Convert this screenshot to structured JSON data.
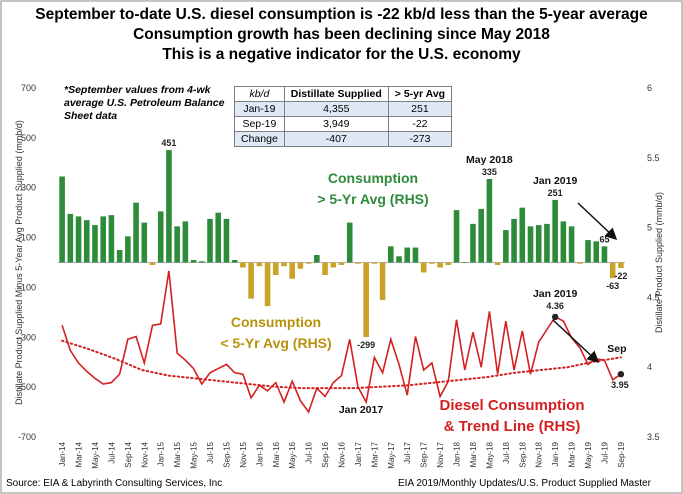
{
  "titles": [
    "September to-date U.S. diesel consumption is -22 kb/d less than the 5-year average",
    "Consumption growth has been declining since May 2018",
    "This is a negative indicator for the U.S. economy"
  ],
  "note": "*September values from 4-wk average U.S. Petroleum Balance Sheet data",
  "table": {
    "headers": [
      "kb/d",
      "Distillate Supplied",
      "> 5-yr Avg"
    ],
    "rows": [
      [
        "Jan-19",
        "4,355",
        "251"
      ],
      [
        "Sep-19",
        "3,949",
        "-22"
      ],
      [
        "Change",
        "-407",
        "-273"
      ]
    ]
  },
  "footer": {
    "source": "Source: EIA & Labyrinth Consulting Services, Inc",
    "credit": "EIA 2019/Monthly Updates/U.S. Product Supplied Master"
  },
  "colors": {
    "positive_bar": "#2e8b3a",
    "negative_bar": "#c9a227",
    "line": "#d42020",
    "trend": "#d42020",
    "green_text": "#2e8b3a",
    "gold_text": "#b8920c",
    "red_text": "#d42020"
  },
  "chart_data": {
    "type": "bar+line",
    "ylabel_left": "Distillate Product Supplied Minus 5-Year Avg Product Supplied (mmb/d)",
    "ylabel_right": "Distillate Product Supplied (mmb/d)",
    "ylim_left": [
      -700,
      700
    ],
    "yticks_left": [
      700,
      500,
      300,
      100,
      -100,
      -300,
      -500,
      -700
    ],
    "ylim_right": [
      3.5,
      6
    ],
    "yticks_right": [
      6,
      5.5,
      5,
      4.5,
      4,
      3.5
    ],
    "x_tick_labels": [
      "Jan-14",
      "Mar-14",
      "May-14",
      "Jul-14",
      "Sep-14",
      "Nov-14",
      "Jan-15",
      "Mar-15",
      "May-15",
      "Jul-15",
      "Sep-15",
      "Nov-15",
      "Jan-16",
      "Mar-16",
      "May-16",
      "Jul-16",
      "Sep-16",
      "Nov-16",
      "Jan-17",
      "Mar-17",
      "May-17",
      "Jul-17",
      "Sep-17",
      "Nov-17",
      "Jan-18",
      "Mar-18",
      "May-18",
      "Jul-18",
      "Sep-18",
      "Nov-18",
      "Jan-19",
      "Mar-19",
      "May-19",
      "Jul-19",
      "Sep-19"
    ],
    "months": [
      "Jan-14",
      "Feb-14",
      "Mar-14",
      "Apr-14",
      "May-14",
      "Jun-14",
      "Jul-14",
      "Aug-14",
      "Sep-14",
      "Oct-14",
      "Nov-14",
      "Dec-14",
      "Jan-15",
      "Feb-15",
      "Mar-15",
      "Apr-15",
      "May-15",
      "Jun-15",
      "Jul-15",
      "Aug-15",
      "Sep-15",
      "Oct-15",
      "Nov-15",
      "Dec-15",
      "Jan-16",
      "Feb-16",
      "Mar-16",
      "Apr-16",
      "May-16",
      "Jun-16",
      "Jul-16",
      "Aug-16",
      "Sep-16",
      "Oct-16",
      "Nov-16",
      "Dec-16",
      "Jan-17",
      "Feb-17",
      "Mar-17",
      "Apr-17",
      "May-17",
      "Jun-17",
      "Jul-17",
      "Aug-17",
      "Sep-17",
      "Oct-17",
      "Nov-17",
      "Dec-17",
      "Jan-18",
      "Feb-18",
      "Mar-18",
      "Apr-18",
      "May-18",
      "Jun-18",
      "Jul-18",
      "Aug-18",
      "Sep-18",
      "Oct-18",
      "Nov-18",
      "Dec-18",
      "Jan-19",
      "Feb-19",
      "Mar-19",
      "Apr-19",
      "May-19",
      "Jun-19",
      "Jul-19",
      "Aug-19",
      "Sep-19"
    ],
    "series": [
      {
        "name": "Consumption minus 5-Yr Avg (LHS)",
        "type": "bar",
        "values": [
          345,
          195,
          185,
          170,
          150,
          185,
          190,
          50,
          105,
          240,
          160,
          -10,
          205,
          451,
          145,
          165,
          10,
          5,
          175,
          200,
          175,
          10,
          -20,
          -145,
          -15,
          -175,
          -50,
          -15,
          -65,
          -25,
          -5,
          30,
          -50,
          -20,
          -10,
          160,
          -5,
          -299,
          -5,
          -150,
          65,
          25,
          60,
          60,
          -40,
          -5,
          -20,
          -10,
          210,
          0,
          155,
          215,
          335,
          -10,
          130,
          175,
          220,
          145,
          150,
          155,
          251,
          165,
          145,
          -5,
          90,
          85,
          65,
          -63,
          -22
        ]
      },
      {
        "name": "Diesel Consumption (RHS)",
        "type": "line",
        "values": [
          4.3,
          4.12,
          4.03,
          3.97,
          3.92,
          3.88,
          3.89,
          3.95,
          4.2,
          4.22,
          4.03,
          4.3,
          4.31,
          4.69,
          4.1,
          4.05,
          3.99,
          3.88,
          3.96,
          3.99,
          4.02,
          3.96,
          3.95,
          3.78,
          3.87,
          3.83,
          3.89,
          3.75,
          3.9,
          3.76,
          3.68,
          3.85,
          3.79,
          3.89,
          3.94,
          4.2,
          3.86,
          3.75,
          4.07,
          3.96,
          4.2,
          4.02,
          3.8,
          4.22,
          3.98,
          4.03,
          3.79,
          3.9,
          4.34,
          3.98,
          4.25,
          4.0,
          4.4,
          3.95,
          4.33,
          3.98,
          4.26,
          3.95,
          4.18,
          4.27,
          4.36,
          4.33,
          4.21,
          4.14,
          4.02,
          4.06,
          4.05,
          3.91,
          3.95
        ]
      },
      {
        "name": "Trend Line (RHS)",
        "type": "trendline",
        "values": [
          4.19,
          4.13,
          4.06,
          3.98,
          3.94,
          3.92,
          3.9,
          3.88,
          3.86,
          3.85,
          3.85,
          3.85,
          3.86,
          3.87,
          3.89,
          3.91,
          3.93,
          3.96,
          3.98,
          4.0,
          4.04,
          4.07
        ]
      }
    ],
    "annotations": {
      "bar_labels": [
        {
          "index": 13,
          "text": "451"
        },
        {
          "index": 52,
          "text": "335",
          "label": "May 2018"
        },
        {
          "index": 60,
          "text": "251",
          "label": "Jan 2019"
        },
        {
          "index": 66,
          "text": "65"
        },
        {
          "index": 37,
          "text": "-299"
        },
        {
          "index": 67,
          "text": "-63"
        },
        {
          "index": 68,
          "text": "-22"
        }
      ],
      "line_labels": [
        {
          "index": 60,
          "text": "4.36",
          "label": "Jan 2019"
        },
        {
          "index": 68,
          "text": "3.95",
          "label": "Sep"
        }
      ],
      "jan_2017": "Jan 2017",
      "green_label": [
        "Consumption",
        "> 5-Yr Avg (RHS)"
      ],
      "gold_label": [
        "Consumption",
        "< 5-Yr Avg (RHS)"
      ],
      "red_label": [
        "Diesel Consumption",
        "& Trend Line (RHS)"
      ]
    }
  }
}
